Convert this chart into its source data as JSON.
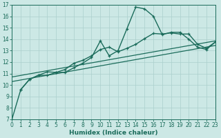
{
  "xlabel": "Humidex (Indice chaleur)",
  "background_color": "#cce8e5",
  "grid_color": "#aacfcc",
  "line_color": "#1a6b5a",
  "xlim": [
    0,
    23
  ],
  "ylim": [
    7,
    17
  ],
  "xticks": [
    0,
    1,
    2,
    3,
    4,
    5,
    6,
    7,
    8,
    9,
    10,
    11,
    12,
    13,
    14,
    15,
    16,
    17,
    18,
    19,
    20,
    21,
    22,
    23
  ],
  "yticks": [
    7,
    8,
    9,
    10,
    11,
    12,
    13,
    14,
    15,
    16,
    17
  ],
  "line1_x": [
    0,
    1,
    2,
    3,
    4,
    5,
    6,
    7,
    8,
    9,
    10,
    11,
    12,
    13,
    14,
    15,
    16,
    17,
    18,
    19,
    20,
    21,
    22,
    23
  ],
  "line1_y": [
    7.0,
    9.6,
    10.5,
    10.85,
    10.85,
    11.1,
    11.1,
    11.5,
    11.9,
    12.4,
    13.85,
    12.55,
    13.0,
    14.9,
    16.8,
    16.65,
    16.0,
    14.4,
    14.6,
    14.6,
    14.0,
    13.3,
    13.1,
    13.75
  ],
  "line2_x": [
    1,
    2,
    3,
    4,
    5,
    6,
    7,
    8,
    9,
    10,
    11,
    12,
    13,
    14,
    15,
    16,
    17,
    18,
    19,
    20,
    21,
    22,
    23
  ],
  "line2_y": [
    9.6,
    10.5,
    10.85,
    11.15,
    11.1,
    11.35,
    11.9,
    12.15,
    12.55,
    13.1,
    13.3,
    12.9,
    13.2,
    13.55,
    14.05,
    14.5,
    14.45,
    14.55,
    14.45,
    14.45,
    13.55,
    13.2,
    13.75
  ],
  "line3_x": [
    0,
    23
  ],
  "line3_y": [
    10.7,
    13.85
  ],
  "line4_x": [
    0,
    23
  ],
  "line4_y": [
    10.3,
    13.45
  ],
  "xlabel_fontsize": 6.5,
  "tick_fontsize": 5.5
}
